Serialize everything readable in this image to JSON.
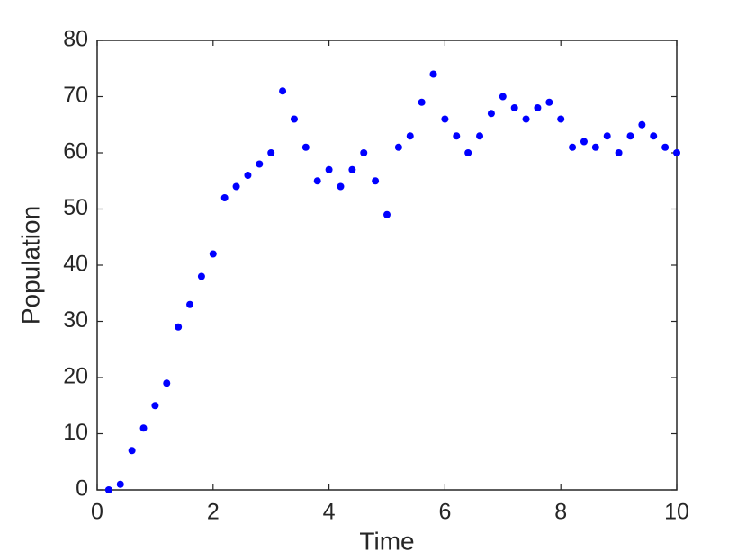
{
  "chart_data": {
    "type": "scatter",
    "x_label": "Time",
    "y_label": "Population",
    "x": [
      0.2,
      0.4,
      0.6,
      0.8,
      1,
      1.2,
      1.4,
      1.6,
      1.8,
      2,
      2.2,
      2.4,
      2.6,
      2.8,
      3,
      3.2,
      3.4,
      3.6,
      3.8,
      4,
      4.2,
      4.4,
      4.6,
      4.8,
      5,
      5.2,
      5.4,
      5.6,
      5.8,
      6,
      6.2,
      6.4,
      6.6,
      6.8,
      7,
      7.2,
      7.4,
      7.6,
      7.8,
      8,
      8.2,
      8.4,
      8.6,
      8.8,
      9,
      9.2,
      9.4,
      9.6,
      9.8,
      10
    ],
    "values": [
      0,
      1,
      7,
      11,
      15,
      19,
      29,
      33,
      38,
      42,
      52,
      54,
      56,
      58,
      60,
      71,
      66,
      61,
      55,
      57,
      54,
      57,
      60,
      55,
      49,
      61,
      63,
      69,
      74,
      66,
      63,
      60,
      63,
      67,
      70,
      68,
      66,
      68,
      69,
      66,
      61,
      62,
      61,
      63,
      60,
      63,
      65,
      63,
      61,
      60
    ],
    "color": "#0000ff",
    "xlim": [
      0,
      10
    ],
    "xticks": [
      0,
      2,
      4,
      6,
      8,
      10
    ],
    "ylim": [
      0,
      80
    ],
    "yticks": [
      0,
      10,
      20,
      30,
      40,
      50,
      60,
      70,
      80
    ]
  }
}
